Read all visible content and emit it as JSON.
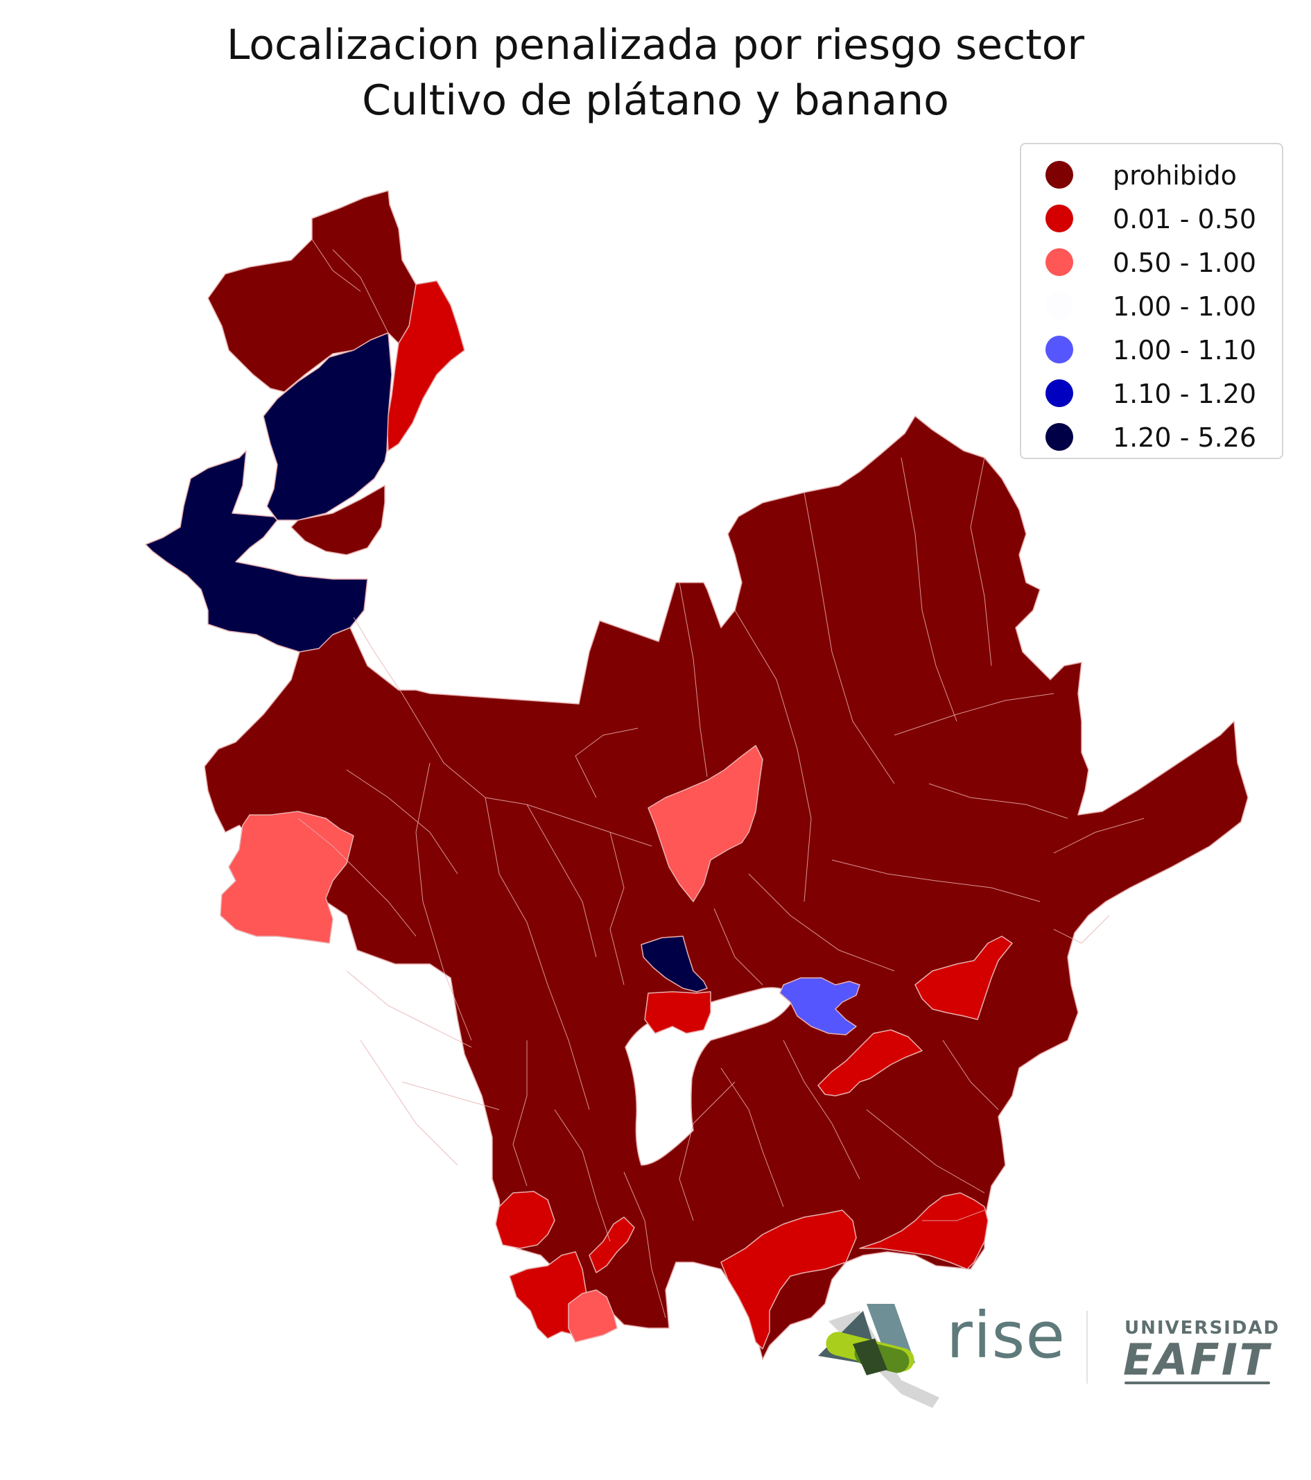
{
  "title": {
    "line1": "Localizacion penalizada por riesgo sector",
    "line2": "Cultivo de plátano y banano"
  },
  "legend": {
    "items": [
      {
        "label": "prohibido",
        "color": "#7f0000"
      },
      {
        "label": "0.01 - 0.50",
        "color": "#d40000"
      },
      {
        "label": "0.50 - 1.00",
        "color": "#ff5656"
      },
      {
        "label": "1.00 - 1.00",
        "color": "#fdfdff"
      },
      {
        "label": "1.00 - 1.10",
        "color": "#5656ff"
      },
      {
        "label": "1.10 - 1.20",
        "color": "#0000c0"
      },
      {
        "label": "1.20 - 5.26",
        "color": "#000046"
      }
    ]
  },
  "colors": {
    "prohibido": "#7f0000",
    "bin_0_01_0_50": "#d40000",
    "bin_0_50_1_00": "#ff5656",
    "bin_1_00_1_10": "#5656ff",
    "bin_1_20_5_26": "#000046",
    "border": "#e8b0b0"
  },
  "logos": {
    "rise": {
      "text": "rise",
      "icon": "rise-logo-icon"
    },
    "eafit": {
      "top": "UNIVERSIDAD",
      "main": "EAFIT",
      "mark": "®"
    }
  }
}
